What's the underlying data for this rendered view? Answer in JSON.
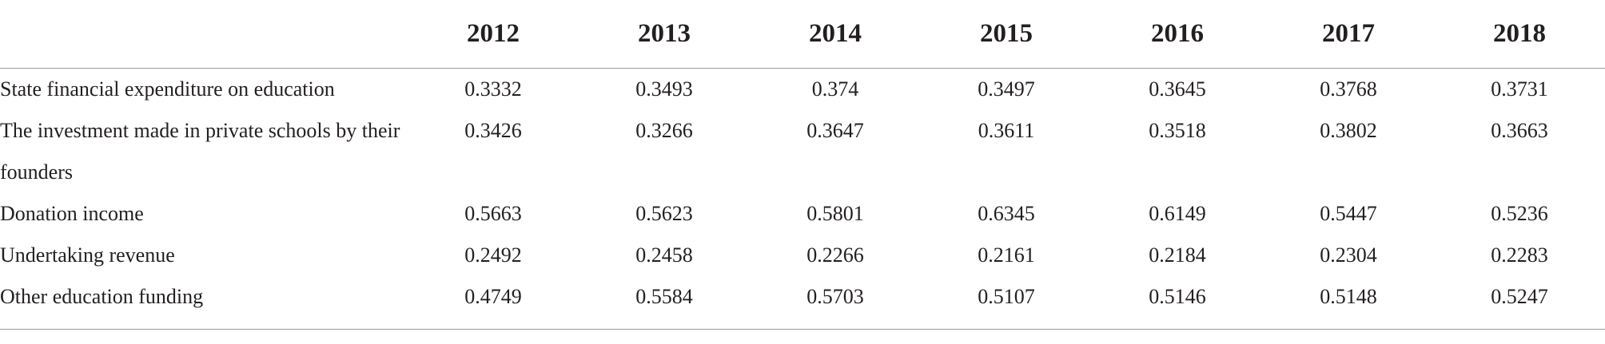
{
  "table": {
    "columns": [
      "",
      "2012",
      "2013",
      "2014",
      "2015",
      "2016",
      "2017",
      "2018"
    ],
    "rows": [
      {
        "label": "State financial expenditure on education",
        "values": [
          "0.3332",
          "0.3493",
          "0.374",
          "0.3497",
          "0.3645",
          "0.3768",
          "0.3731"
        ]
      },
      {
        "label": "The investment made in private schools by their founders",
        "values": [
          "0.3426",
          "0.3266",
          "0.3647",
          "0.3611",
          "0.3518",
          "0.3802",
          "0.3663"
        ]
      },
      {
        "label": "Donation income",
        "values": [
          "0.5663",
          "0.5623",
          "0.5801",
          "0.6345",
          "0.6149",
          "0.5447",
          "0.5236"
        ]
      },
      {
        "label": "Undertaking revenue",
        "values": [
          "0.2492",
          "0.2458",
          "0.2266",
          "0.2161",
          "0.2184",
          "0.2304",
          "0.2283"
        ]
      },
      {
        "label": "Other education funding",
        "values": [
          "0.4749",
          "0.5584",
          "0.5703",
          "0.5107",
          "0.5146",
          "0.5148",
          "0.5247"
        ]
      }
    ]
  }
}
